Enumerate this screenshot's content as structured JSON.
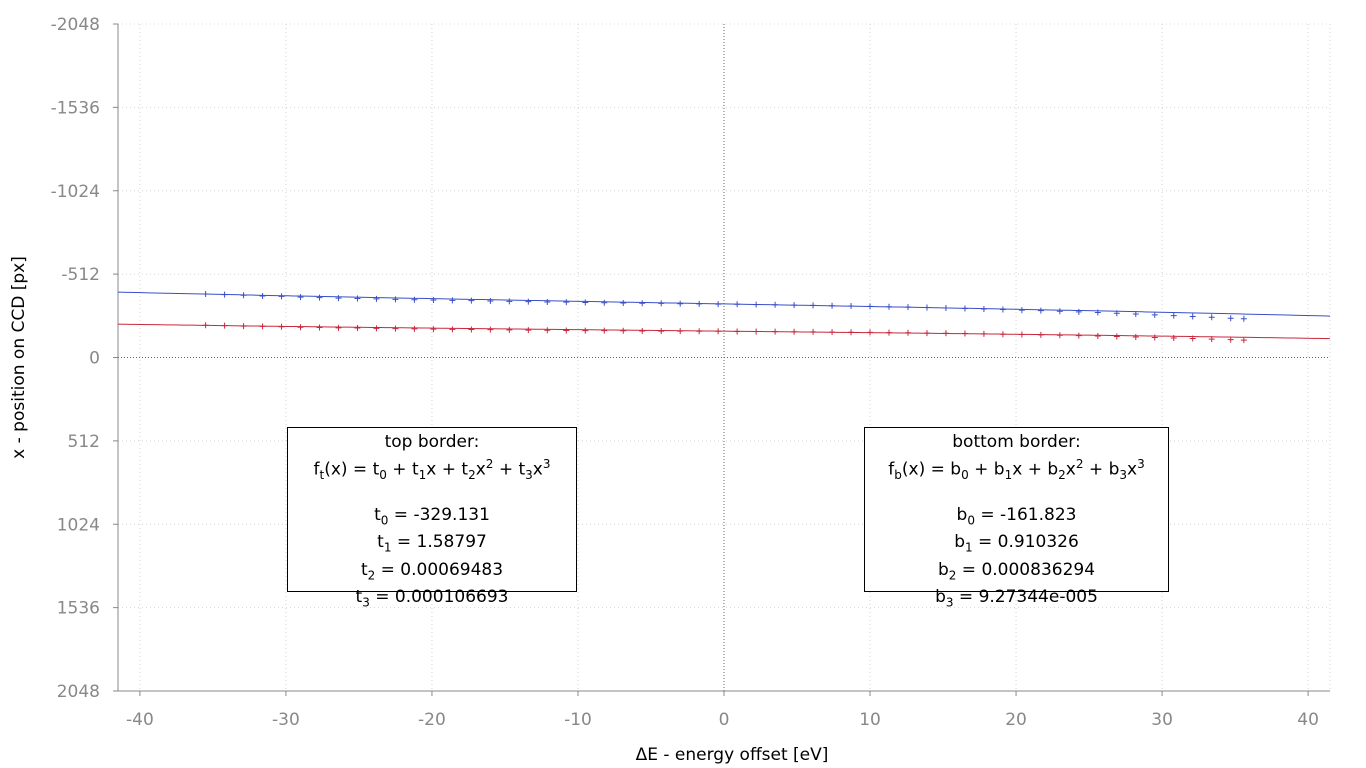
{
  "chart_data": {
    "type": "line",
    "xlabel": "ΔE - energy offset [eV]",
    "ylabel": "x - position on CCD [px]",
    "xlim": [
      -41.5,
      41.5
    ],
    "ylim": [
      -2048,
      2048
    ],
    "y_inverted": true,
    "x_ticks": [
      -40,
      -30,
      -20,
      -10,
      0,
      10,
      20,
      30,
      40
    ],
    "y_ticks": [
      -2048,
      -1536,
      -1024,
      -512,
      0,
      512,
      1024,
      1536,
      2048
    ],
    "grid": true,
    "series": [
      {
        "color": "#3a4fc8",
        "marker": "+",
        "fit_coefficients": [
          -329.131,
          1.58797,
          0.00069483,
          0.000106693
        ],
        "fit_range": [
          -41.5,
          41.5
        ],
        "x": [
          -35.5,
          -34.2,
          -32.9,
          -31.6,
          -30.3,
          -29.0,
          -27.7,
          -26.4,
          -25.1,
          -23.8,
          -22.5,
          -21.2,
          -19.9,
          -18.6,
          -17.3,
          -16.0,
          -14.7,
          -13.4,
          -12.1,
          -10.8,
          -9.5,
          -8.2,
          -6.9,
          -5.6,
          -4.3,
          -3.0,
          -1.7,
          -0.4,
          0.9,
          2.2,
          3.5,
          4.8,
          6.1,
          7.4,
          8.7,
          10.0,
          11.3,
          12.6,
          13.9,
          15.2,
          16.5,
          17.8,
          19.1,
          20.4,
          21.7,
          23.0,
          24.3,
          25.6,
          26.9,
          28.2,
          29.5,
          30.8,
          32.1,
          33.4,
          34.7,
          35.6
        ],
        "y": [
          -390,
          -386,
          -382,
          -378,
          -375,
          -371,
          -368,
          -365,
          -362,
          -360,
          -357,
          -355,
          -353,
          -351,
          -349,
          -347,
          -345,
          -343,
          -341,
          -340,
          -338,
          -336,
          -335,
          -333,
          -332,
          -330,
          -329,
          -328,
          -327,
          -325,
          -324,
          -322,
          -320,
          -318,
          -316,
          -314,
          -312,
          -309,
          -307,
          -304,
          -301,
          -298,
          -295,
          -291,
          -288,
          -284,
          -280,
          -276,
          -272,
          -267,
          -262,
          -257,
          -252,
          -247,
          -241,
          -238
        ]
      },
      {
        "color": "#c8283c",
        "marker": "+",
        "fit_coefficients": [
          -161.823,
          0.910326,
          0.000836294,
          9.27344e-05
        ],
        "fit_range": [
          -41.5,
          41.5
        ],
        "x": [
          -35.5,
          -34.2,
          -32.9,
          -31.6,
          -30.3,
          -29.0,
          -27.7,
          -26.4,
          -25.1,
          -23.8,
          -22.5,
          -21.2,
          -19.9,
          -18.6,
          -17.3,
          -16.0,
          -14.7,
          -13.4,
          -12.1,
          -10.8,
          -9.5,
          -8.2,
          -6.9,
          -5.6,
          -4.3,
          -3.0,
          -1.7,
          -0.4,
          0.9,
          2.2,
          3.5,
          4.8,
          6.1,
          7.4,
          8.7,
          10.0,
          11.3,
          12.6,
          13.9,
          15.2,
          16.5,
          17.8,
          19.1,
          20.4,
          21.7,
          23.0,
          24.3,
          25.6,
          26.9,
          28.2,
          29.5,
          30.8,
          32.1,
          33.4,
          34.7,
          35.6
        ],
        "y": [
          -198,
          -196,
          -193,
          -191,
          -189,
          -186,
          -184,
          -182,
          -181,
          -179,
          -177,
          -176,
          -174,
          -173,
          -172,
          -171,
          -170,
          -168,
          -167,
          -166,
          -165,
          -165,
          -164,
          -163,
          -162,
          -162,
          -161,
          -161,
          -160,
          -160,
          -159,
          -158,
          -157,
          -156,
          -155,
          -154,
          -153,
          -152,
          -150,
          -149,
          -147,
          -145,
          -143,
          -141,
          -139,
          -137,
          -134,
          -132,
          -129,
          -126,
          -123,
          -120,
          -117,
          -113,
          -110,
          -107
        ]
      }
    ],
    "annotations": [
      {
        "heading": "top border:",
        "formula": {
          "f": "f",
          "fsub": "t",
          "arg": "(x) = ",
          "c": "t"
        },
        "params": [
          {
            "sym": "t",
            "sub": "0",
            "value": " = -329.131"
          },
          {
            "sym": "t",
            "sub": "1",
            "value": " = 1.58797"
          },
          {
            "sym": "t",
            "sub": "2",
            "value": " = 0.00069483"
          },
          {
            "sym": "t",
            "sub": "3",
            "value": " = 0.000106693"
          }
        ]
      },
      {
        "heading": "bottom border:",
        "formula": {
          "f": "f",
          "fsub": "b",
          "arg": "(x) = ",
          "c": "b"
        },
        "params": [
          {
            "sym": "b",
            "sub": "0",
            "value": " = -161.823"
          },
          {
            "sym": "b",
            "sub": "1",
            "value": " = 0.910326"
          },
          {
            "sym": "b",
            "sub": "2",
            "value": " = 0.000836294"
          },
          {
            "sym": "b",
            "sub": "3",
            "value": " = 9.27344e-005"
          }
        ]
      }
    ]
  }
}
